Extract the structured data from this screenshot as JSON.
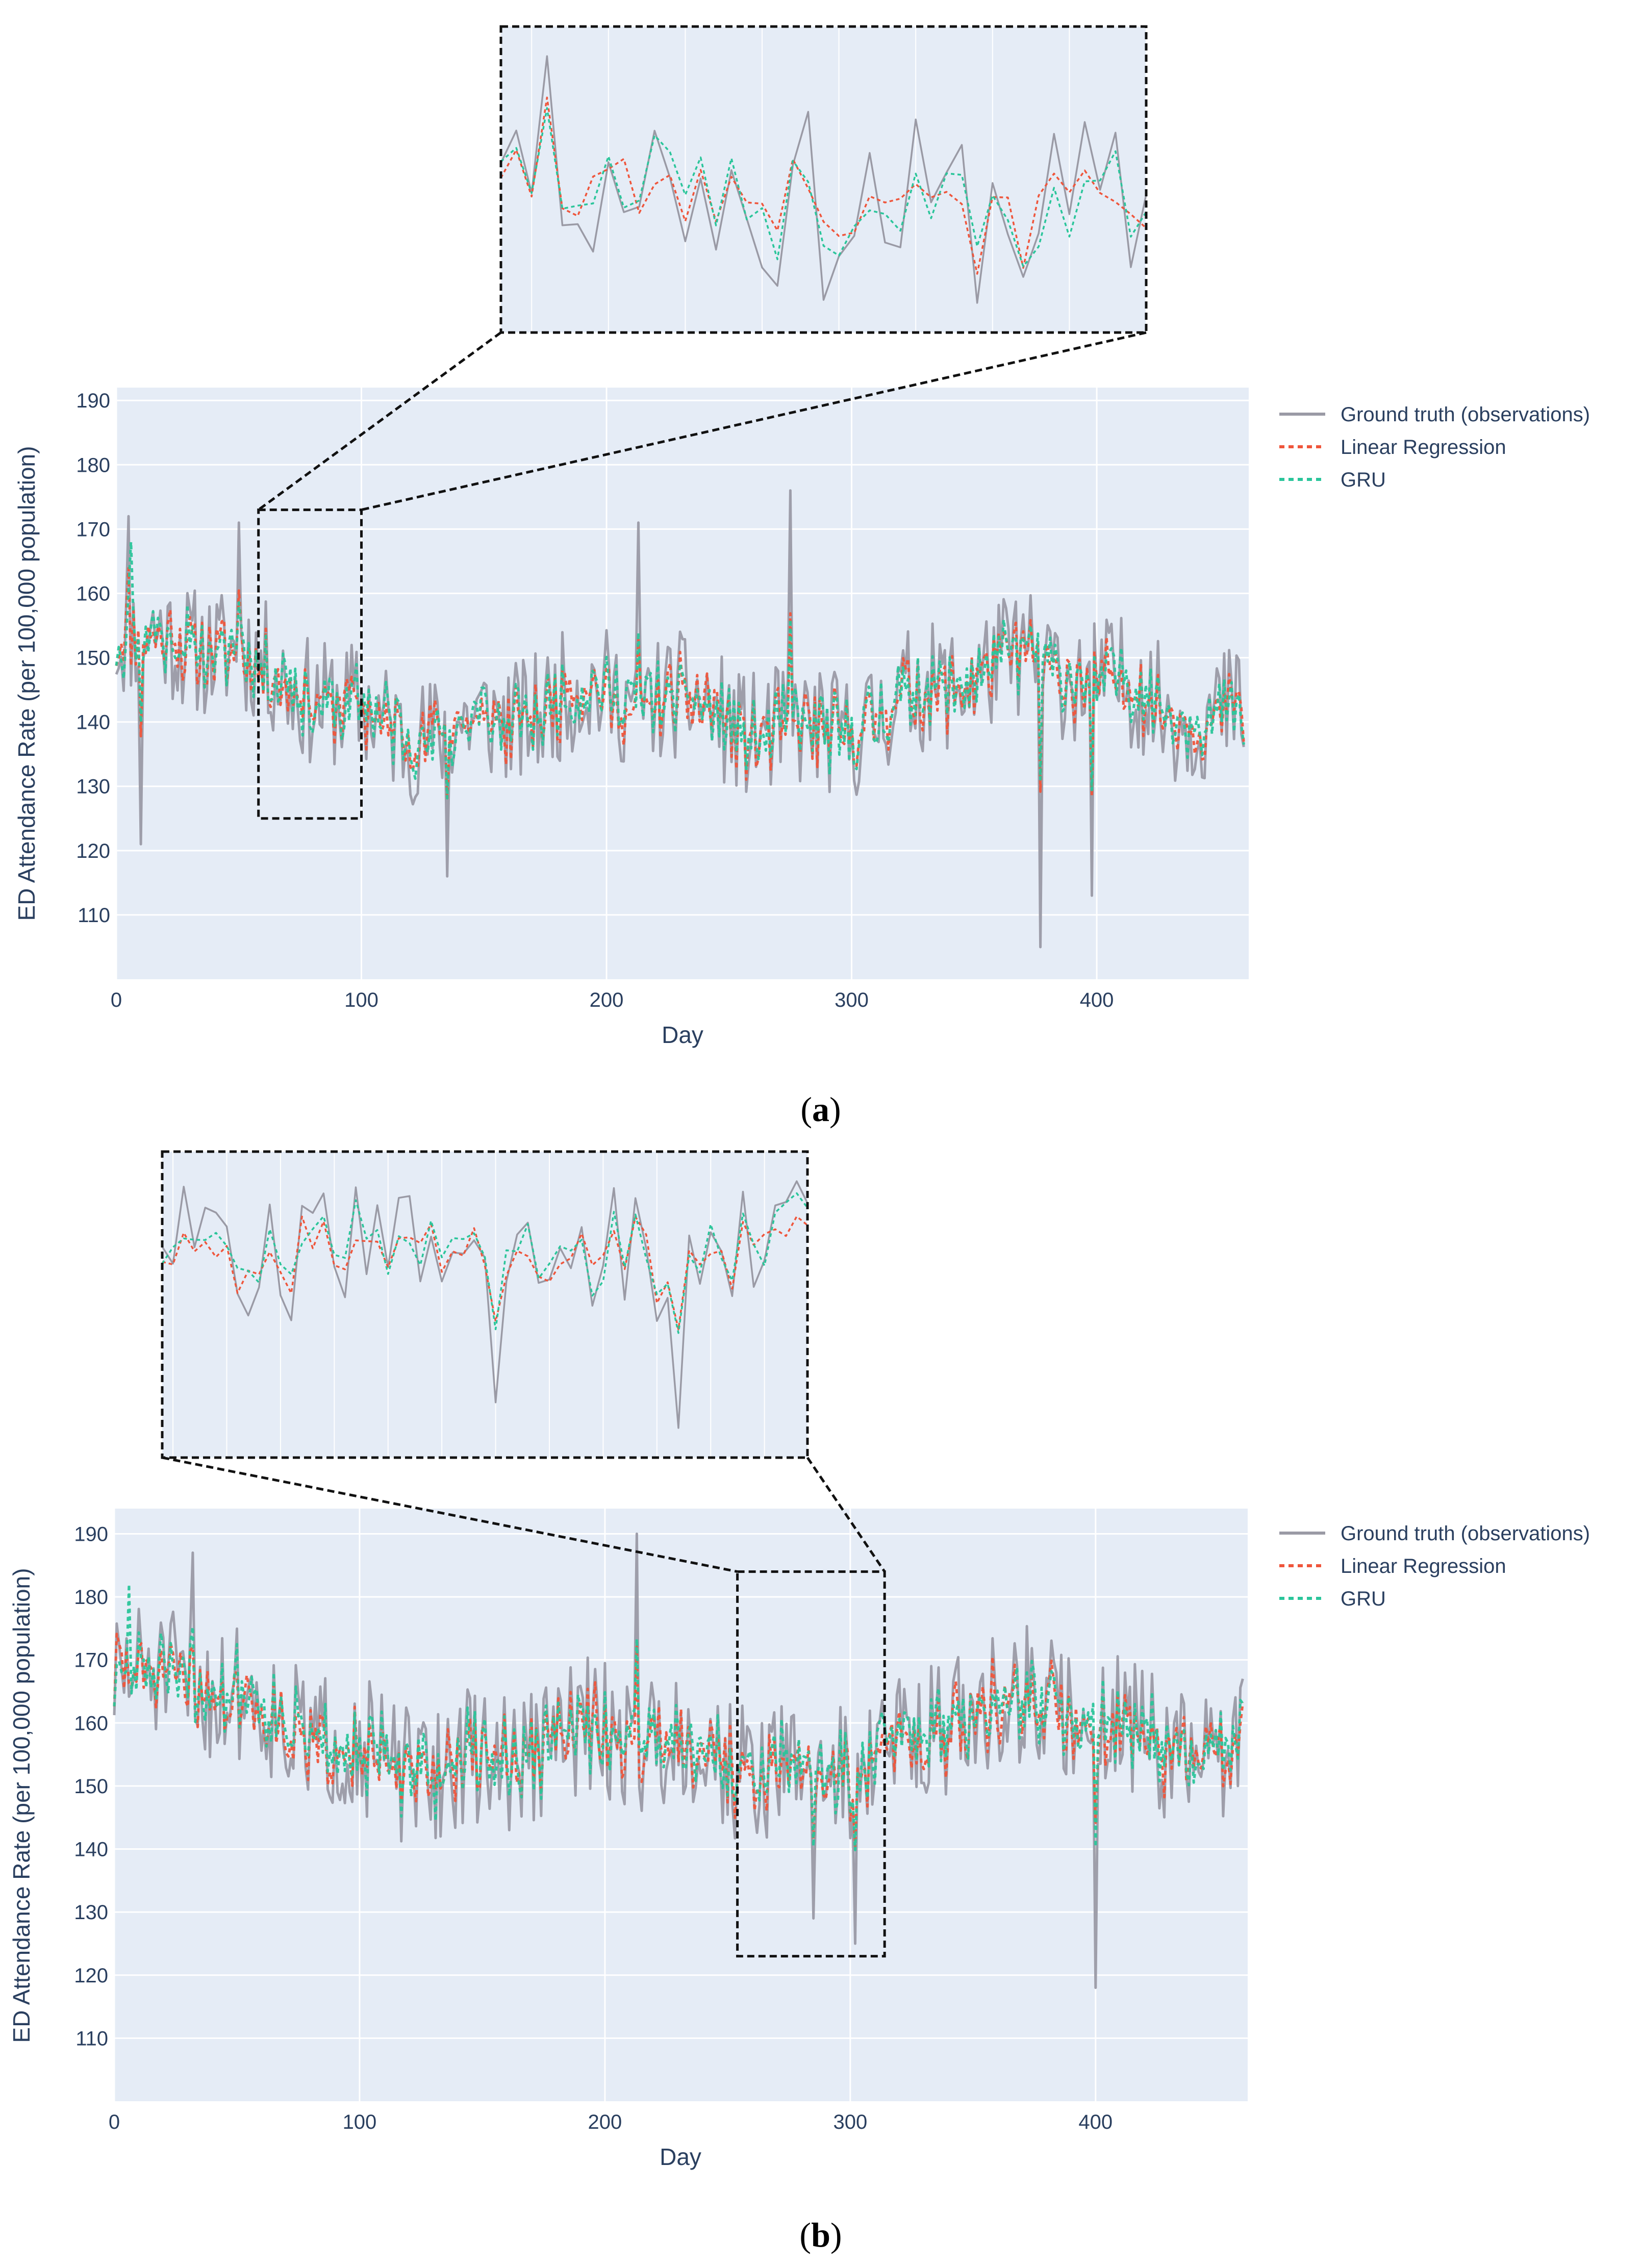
{
  "chart_data": [
    {
      "panel_label": "a",
      "type": "line",
      "xlabel": "Day",
      "ylabel": "ED Attendance Rate (per 100,000 population)",
      "xlim": [
        0,
        462
      ],
      "ylim": [
        100,
        192
      ],
      "x_ticks": [
        0,
        100,
        200,
        300,
        400
      ],
      "x_tick_labels": [
        "0",
        "100",
        "200",
        "300",
        "400"
      ],
      "y_ticks": [
        110,
        120,
        130,
        140,
        150,
        160,
        170,
        180,
        190
      ],
      "y_tick_labels": [
        "110",
        "120",
        "130",
        "140",
        "150",
        "160",
        "170",
        "180",
        "190"
      ],
      "grid": true,
      "legend_position": "right",
      "series": [
        {
          "name": "Ground truth (observations)",
          "color": "#9a9aa5",
          "dash": "solid",
          "mean": 143,
          "noise": 10,
          "seed": 11,
          "anchors": [
            [
              5,
              172
            ],
            [
              10,
              121
            ],
            [
              50,
              171
            ],
            [
              135,
              116
            ],
            [
              213,
              171
            ],
            [
              275,
              176
            ],
            [
              377,
              105
            ],
            [
              398,
              113
            ]
          ]
        },
        {
          "name": "Linear Regression",
          "color": "#ef553b",
          "dash": "dot",
          "mean": 143,
          "noise": 5.5,
          "seed": 23,
          "anchors": []
        },
        {
          "name": "GRU",
          "color": "#2ac59a",
          "dash": "dot",
          "mean": 143,
          "noise": 5.5,
          "seed": 37,
          "anchors": [
            [
              6,
              168
            ]
          ]
        }
      ],
      "zoom": {
        "x_range": [
          58,
          100
        ],
        "y_range": [
          125,
          173
        ]
      }
    },
    {
      "panel_label": "b",
      "type": "line",
      "xlabel": "Day",
      "ylabel": "ED Attendance Rate (per 100,000 population)",
      "xlim": [
        0,
        462
      ],
      "ylim": [
        100,
        194
      ],
      "x_ticks": [
        0,
        100,
        200,
        300,
        400
      ],
      "x_tick_labels": [
        "0",
        "100",
        "200",
        "300",
        "400"
      ],
      "y_ticks": [
        110,
        120,
        130,
        140,
        150,
        160,
        170,
        180,
        190
      ],
      "y_tick_labels": [
        "110",
        "120",
        "130",
        "140",
        "150",
        "160",
        "170",
        "180",
        "190"
      ],
      "grid": true,
      "legend_position": "right",
      "series": [
        {
          "name": "Ground truth (observations)",
          "color": "#9a9aa5",
          "dash": "solid",
          "mean": 157,
          "noise": 11,
          "seed": 51,
          "anchors": [
            [
              32,
              187
            ],
            [
              213,
              190
            ],
            [
              400,
              118
            ],
            [
              302,
              125
            ],
            [
              285,
              129
            ]
          ]
        },
        {
          "name": "Linear Regression",
          "color": "#ef553b",
          "dash": "dot",
          "mean": 157,
          "noise": 6,
          "seed": 63,
          "anchors": []
        },
        {
          "name": "GRU",
          "color": "#2ac59a",
          "dash": "dot",
          "mean": 157,
          "noise": 6,
          "seed": 77,
          "anchors": [
            [
              6,
              182
            ]
          ]
        }
      ],
      "zoom": {
        "x_range": [
          254,
          314
        ],
        "y_range": [
          123,
          184
        ]
      }
    }
  ]
}
